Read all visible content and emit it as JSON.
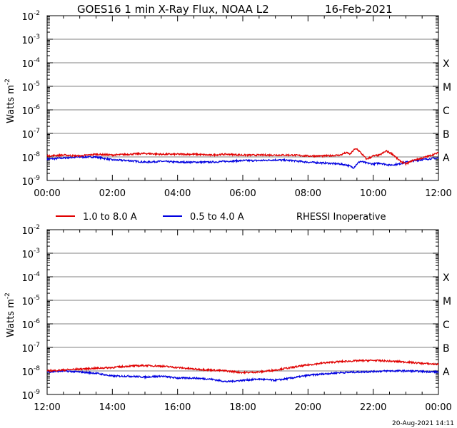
{
  "title": "GOES16 1 min X-Ray Flux, NOAA L2",
  "date": "16-Feb-2021",
  "ylabel_main": "Watts m",
  "ylabel_exp": "-2",
  "flare_classes": [
    "X",
    "M",
    "C",
    "B",
    "A"
  ],
  "legend": {
    "long": "1.0 to 8.0 A",
    "short": "0.5 to 4.0 A",
    "note": "RHESSI Inoperative"
  },
  "footer": "20-Aug-2021 14:11",
  "colors": {
    "long": "#e00000",
    "short": "#0000e0",
    "grid": "#808080",
    "axis": "#000000"
  },
  "chart_data": [
    {
      "type": "line",
      "yscale": "log",
      "ylim": [
        1e-09,
        0.01
      ],
      "ytick_labels": [
        {
          "base": "10",
          "exp": "-2"
        },
        {
          "base": "10",
          "exp": "-3"
        },
        {
          "base": "10",
          "exp": "-4"
        },
        {
          "base": "10",
          "exp": "-5"
        },
        {
          "base": "10",
          "exp": "-6"
        },
        {
          "base": "10",
          "exp": "-7"
        },
        {
          "base": "10",
          "exp": "-8"
        },
        {
          "base": "10",
          "exp": "-9"
        }
      ],
      "xlim_hours": [
        0,
        12
      ],
      "xtick_labels": [
        "00:00",
        "02:00",
        "04:00",
        "06:00",
        "08:00",
        "10:00",
        "12:00"
      ],
      "series": [
        {
          "name": "1.0 to 8.0 A",
          "x_hours": [
            0,
            0.5,
            1,
            1.5,
            2,
            2.5,
            3,
            3.5,
            4,
            4.5,
            5,
            5.5,
            6,
            6.5,
            7,
            7.5,
            8,
            8.5,
            9,
            9.1,
            9.2,
            9.3,
            9.4,
            9.5,
            9.6,
            9.8,
            10,
            10.2,
            10.4,
            10.6,
            10.8,
            11,
            11.2,
            11.5,
            11.8,
            12
          ],
          "values": [
            1.1e-08,
            1.2e-08,
            1.1e-08,
            1.3e-08,
            1.2e-08,
            1.3e-08,
            1.4e-08,
            1.3e-08,
            1.3e-08,
            1.3e-08,
            1.2e-08,
            1.3e-08,
            1.2e-08,
            1.2e-08,
            1.2e-08,
            1.2e-08,
            1.1e-08,
            1.1e-08,
            1.2e-08,
            1.4e-08,
            1.5e-08,
            1.3e-08,
            2e-08,
            2.2e-08,
            1.6e-08,
            8e-09,
            1.1e-08,
            1.2e-08,
            1.8e-08,
            1.3e-08,
            7e-09,
            5e-09,
            7e-09,
            9e-09,
            1.2e-08,
            1.5e-08
          ]
        },
        {
          "name": "0.5 to 4.0 A",
          "x_hours": [
            0,
            0.5,
            1,
            1.5,
            2,
            2.5,
            3,
            3.5,
            4,
            4.5,
            5,
            5.5,
            6,
            6.5,
            7,
            7.5,
            8,
            8.5,
            9,
            9.2,
            9.4,
            9.5,
            9.6,
            9.8,
            10,
            10.2,
            10.5,
            10.8,
            11,
            11.3,
            11.6,
            12
          ],
          "values": [
            8e-09,
            9e-09,
            1e-08,
            1e-08,
            7.5e-09,
            7e-09,
            6e-09,
            6.5e-09,
            6e-09,
            6e-09,
            6e-09,
            6.5e-09,
            7e-09,
            7e-09,
            7.5e-09,
            7e-09,
            6e-09,
            5.5e-09,
            5e-09,
            4.5e-09,
            3.5e-09,
            5e-09,
            6.5e-09,
            5.5e-09,
            5e-09,
            5.5e-09,
            4.5e-09,
            5e-09,
            6e-09,
            7e-09,
            8e-09,
            9e-09
          ]
        }
      ]
    },
    {
      "type": "line",
      "yscale": "log",
      "ylim": [
        1e-09,
        0.01
      ],
      "ytick_labels": [
        {
          "base": "10",
          "exp": "-2"
        },
        {
          "base": "10",
          "exp": "-3"
        },
        {
          "base": "10",
          "exp": "-4"
        },
        {
          "base": "10",
          "exp": "-5"
        },
        {
          "base": "10",
          "exp": "-6"
        },
        {
          "base": "10",
          "exp": "-7"
        },
        {
          "base": "10",
          "exp": "-8"
        },
        {
          "base": "10",
          "exp": "-9"
        }
      ],
      "xlim_hours": [
        12,
        24
      ],
      "xtick_labels": [
        "12:00",
        "14:00",
        "16:00",
        "18:00",
        "20:00",
        "22:00",
        "00:00"
      ],
      "series": [
        {
          "name": "1.0 to 8.0 A",
          "x_hours": [
            12,
            12.5,
            13,
            13.5,
            14,
            14.5,
            15,
            15.5,
            16,
            16.5,
            17,
            17.5,
            18,
            18.5,
            19,
            19.5,
            20,
            20.5,
            21,
            21.5,
            22,
            22.5,
            23,
            23.5,
            24
          ],
          "values": [
            1e-08,
            1.1e-08,
            1.2e-08,
            1.3e-08,
            1.4e-08,
            1.6e-08,
            1.7e-08,
            1.6e-08,
            1.4e-08,
            1.2e-08,
            1.1e-08,
            1e-08,
            8.5e-09,
            9e-09,
            1.1e-08,
            1.4e-08,
            1.8e-08,
            2.2e-08,
            2.5e-08,
            2.7e-08,
            2.8e-08,
            2.6e-08,
            2.4e-08,
            2.1e-08,
            1.9e-08
          ]
        },
        {
          "name": "0.5 to 4.0 A",
          "x_hours": [
            12,
            12.5,
            13,
            13.5,
            14,
            14.5,
            15,
            15.5,
            16,
            16.5,
            17,
            17.5,
            18,
            18.5,
            19,
            19.5,
            20,
            20.5,
            21,
            21.5,
            22,
            22.5,
            23,
            23.5,
            24
          ],
          "values": [
            9e-09,
            1e-08,
            9e-09,
            8e-09,
            6e-09,
            6e-09,
            5.5e-09,
            6e-09,
            5e-09,
            5e-09,
            4.5e-09,
            3.5e-09,
            4e-09,
            4.5e-09,
            4e-09,
            5e-09,
            6.5e-09,
            7.5e-09,
            8.5e-09,
            9e-09,
            9.5e-09,
            1e-08,
            1e-08,
            9.5e-09,
            9e-09
          ]
        }
      ]
    }
  ]
}
